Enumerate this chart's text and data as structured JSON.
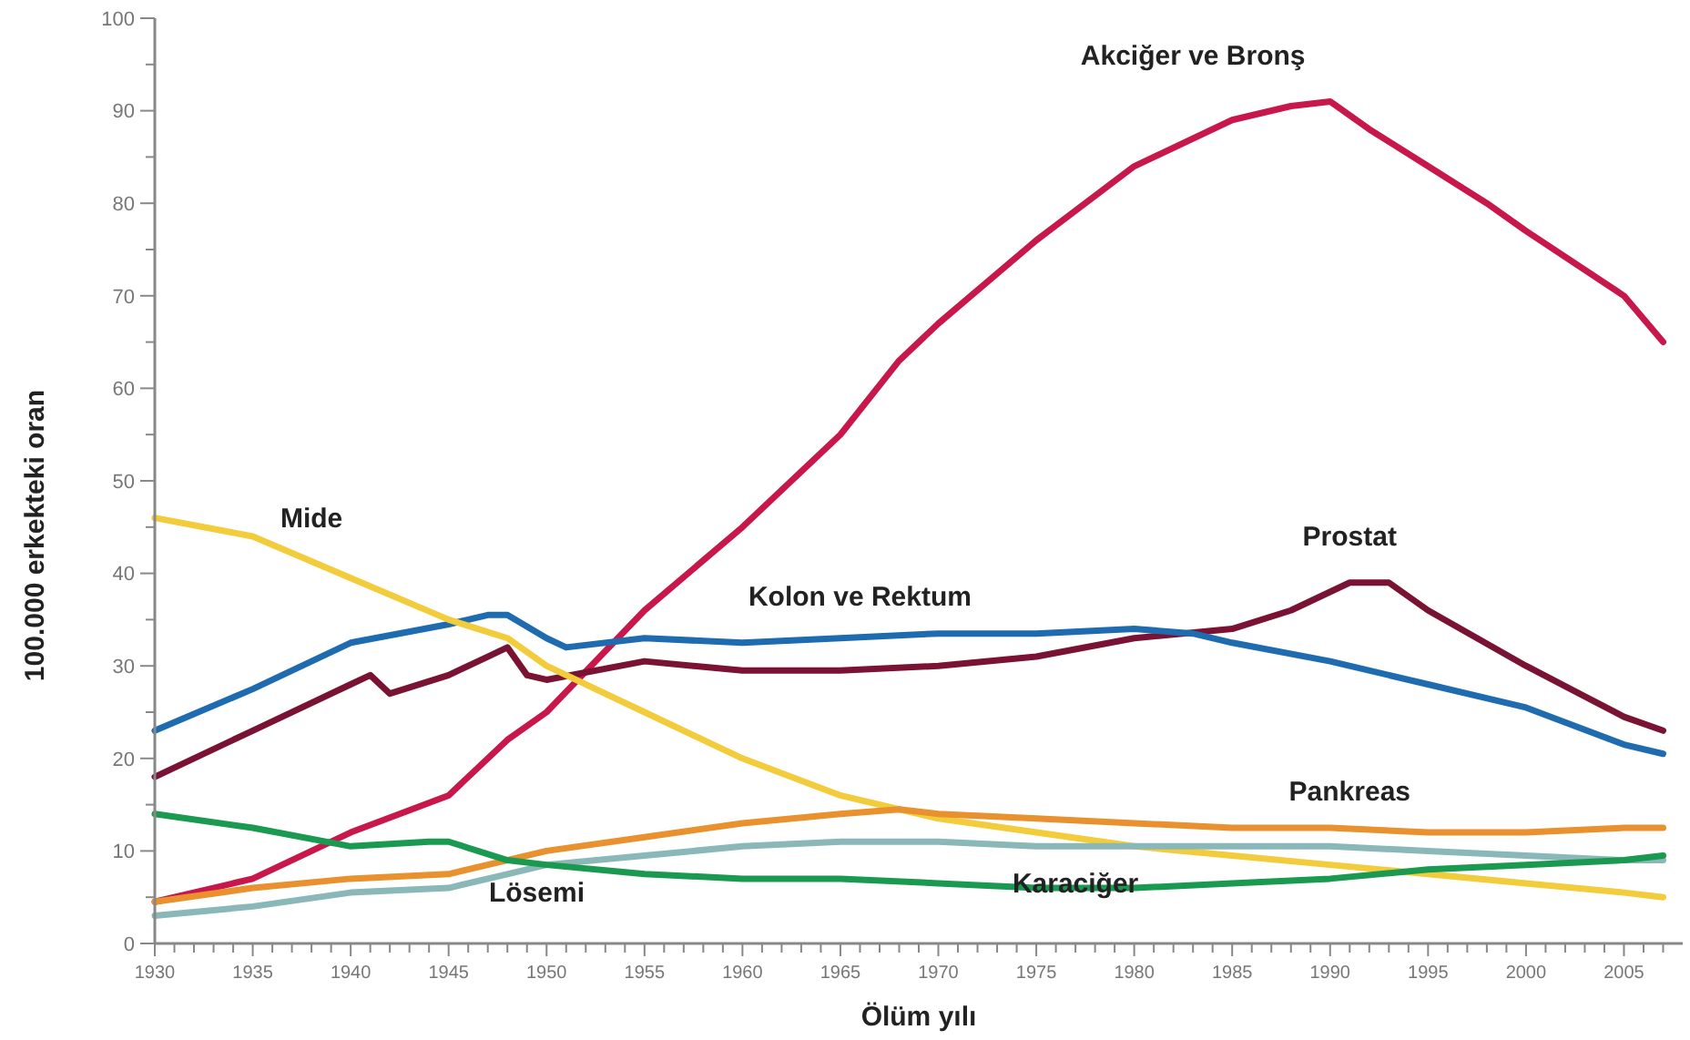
{
  "chart_data": {
    "type": "line",
    "xlabel": "Ölüm yılı",
    "ylabel": "100.000 erkekteki oran",
    "xlim": [
      1930,
      2008
    ],
    "ylim": [
      0,
      100
    ],
    "xticks": [
      1930,
      {
        "value": 1931,
        "label": null
      },
      {
        "value": 1932,
        "label": null
      },
      {
        "value": 1933,
        "label": null
      },
      {
        "value": 1934,
        "label": null
      },
      1935,
      {
        "value": 1936,
        "label": null
      },
      {
        "value": 1937,
        "label": null
      },
      {
        "value": 1938,
        "label": null
      },
      {
        "value": 1939,
        "label": null
      },
      1940,
      {
        "value": 1941,
        "label": null
      },
      {
        "value": 1942,
        "label": null
      },
      {
        "value": 1943,
        "label": null
      },
      {
        "value": 1944,
        "label": null
      },
      1945,
      {
        "value": 1946,
        "label": null
      },
      {
        "value": 1947,
        "label": null
      },
      {
        "value": 1948,
        "label": null
      },
      {
        "value": 1949,
        "label": null
      },
      1950,
      {
        "value": 1951,
        "label": null
      },
      {
        "value": 1952,
        "label": null
      },
      {
        "value": 1953,
        "label": null
      },
      {
        "value": 1954,
        "label": null
      },
      1955,
      {
        "value": 1956,
        "label": null
      },
      {
        "value": 1957,
        "label": null
      },
      {
        "value": 1958,
        "label": null
      },
      {
        "value": 1959,
        "label": null
      },
      1960,
      {
        "value": 1961,
        "label": null
      },
      {
        "value": 1962,
        "label": null
      },
      {
        "value": 1963,
        "label": null
      },
      {
        "value": 1964,
        "label": null
      },
      1965,
      {
        "value": 1966,
        "label": null
      },
      {
        "value": 1967,
        "label": null
      },
      {
        "value": 1968,
        "label": null
      },
      {
        "value": 1969,
        "label": null
      },
      1970,
      {
        "value": 1971,
        "label": null
      },
      {
        "value": 1972,
        "label": null
      },
      {
        "value": 1973,
        "label": null
      },
      {
        "value": 1974,
        "label": null
      },
      1975,
      {
        "value": 1976,
        "label": null
      },
      {
        "value": 1977,
        "label": null
      },
      {
        "value": 1978,
        "label": null
      },
      {
        "value": 1979,
        "label": null
      },
      1980,
      {
        "value": 1981,
        "label": null
      },
      {
        "value": 1982,
        "label": null
      },
      {
        "value": 1983,
        "label": null
      },
      {
        "value": 1984,
        "label": null
      },
      1985,
      {
        "value": 1986,
        "label": null
      },
      {
        "value": 1987,
        "label": null
      },
      {
        "value": 1988,
        "label": null
      },
      {
        "value": 1989,
        "label": null
      },
      1990,
      {
        "value": 1991,
        "label": null
      },
      {
        "value": 1992,
        "label": null
      },
      {
        "value": 1993,
        "label": null
      },
      {
        "value": 1994,
        "label": null
      },
      1995,
      {
        "value": 1996,
        "label": null
      },
      {
        "value": 1997,
        "label": null
      },
      {
        "value": 1998,
        "label": null
      },
      {
        "value": 1999,
        "label": null
      },
      2000,
      {
        "value": 2001,
        "label": null
      },
      {
        "value": 2002,
        "label": null
      },
      {
        "value": 2003,
        "label": null
      },
      {
        "value": 2004,
        "label": null
      },
      2005,
      {
        "value": 2006,
        "label": null
      },
      {
        "value": 2007,
        "label": null
      }
    ],
    "yticks": [
      0,
      {
        "value": 5,
        "label": null
      },
      10,
      {
        "value": 15,
        "label": null
      },
      20,
      {
        "value": 25,
        "label": null
      },
      30,
      {
        "value": 35,
        "label": null
      },
      40,
      {
        "value": 45,
        "label": null
      },
      50,
      {
        "value": 55,
        "label": null
      },
      60,
      {
        "value": 65,
        "label": null
      },
      70,
      {
        "value": 75,
        "label": null
      },
      80,
      {
        "value": 85,
        "label": null
      },
      90,
      {
        "value": 95,
        "label": null
      },
      100
    ],
    "grid": false,
    "legend": false,
    "marker": "none",
    "line_style": "solid",
    "series": [
      {
        "name": "Akciğer ve Bronş",
        "color": "#c8174a",
        "x": [
          1930,
          1935,
          1940,
          1945,
          1948,
          1950,
          1955,
          1960,
          1965,
          1968,
          1970,
          1975,
          1980,
          1985,
          1988,
          1990,
          1992,
          1995,
          1998,
          2000,
          2005,
          2007
        ],
        "values": [
          4.5,
          7,
          12,
          16,
          22,
          25,
          36,
          45,
          55,
          63,
          67,
          76,
          84,
          89,
          90.5,
          91,
          88,
          84,
          80,
          77,
          70,
          65
        ]
      },
      {
        "name": "Prostat",
        "color": "#7a1233",
        "x": [
          1930,
          1935,
          1940,
          1941,
          1942,
          1945,
          1947,
          1948,
          1949,
          1950,
          1955,
          1960,
          1965,
          1970,
          1975,
          1980,
          1985,
          1988,
          1991,
          1993,
          1995,
          2000,
          2005,
          2007
        ],
        "values": [
          18,
          23,
          28,
          29,
          27,
          29,
          31,
          32,
          29,
          28.5,
          30.5,
          29.5,
          29.5,
          30,
          31,
          33,
          34,
          36,
          39,
          39,
          36,
          30,
          24.5,
          23
        ]
      },
      {
        "name": "Kolon ve Rektum",
        "color": "#1f6bb0",
        "x": [
          1930,
          1935,
          1940,
          1945,
          1947,
          1948,
          1950,
          1951,
          1955,
          1960,
          1965,
          1970,
          1975,
          1980,
          1983,
          1985,
          1990,
          1995,
          2000,
          2005,
          2007
        ],
        "values": [
          23,
          27.5,
          32.5,
          34.5,
          35.5,
          35.5,
          33,
          32,
          33,
          32.5,
          33,
          33.5,
          33.5,
          34,
          33.5,
          32.5,
          30.5,
          28,
          25.5,
          21.5,
          20.5
        ]
      },
      {
        "name": "Mide",
        "color": "#f2cc3a",
        "x": [
          1930,
          1935,
          1940,
          1945,
          1948,
          1950,
          1955,
          1960,
          1965,
          1970,
          1975,
          1980,
          1985,
          1990,
          1995,
          2000,
          2005,
          2007
        ],
        "values": [
          46,
          44,
          39.5,
          35,
          33,
          30,
          25,
          20,
          16,
          13.5,
          12,
          10.5,
          9.5,
          8.5,
          7.5,
          6.5,
          5.5,
          5
        ]
      },
      {
        "name": "Pankreas",
        "color": "#e8912e",
        "x": [
          1930,
          1935,
          1940,
          1945,
          1950,
          1955,
          1960,
          1965,
          1968,
          1970,
          1975,
          1980,
          1985,
          1990,
          1995,
          2000,
          2005,
          2007
        ],
        "values": [
          4.5,
          6,
          7,
          7.5,
          10,
          11.5,
          13,
          14,
          14.5,
          14,
          13.5,
          13,
          12.5,
          12.5,
          12,
          12,
          12.5,
          12.5
        ]
      },
      {
        "name": "Lösemi",
        "color": "#8ab8b8",
        "x": [
          1930,
          1935,
          1940,
          1945,
          1948,
          1950,
          1955,
          1960,
          1965,
          1970,
          1975,
          1980,
          1985,
          1990,
          1995,
          2000,
          2005,
          2007
        ],
        "values": [
          3,
          4,
          5.5,
          6,
          7.5,
          8.5,
          9.5,
          10.5,
          11,
          11,
          10.5,
          10.5,
          10.5,
          10.5,
          10,
          9.5,
          9,
          9
        ]
      },
      {
        "name": "Karaciğer",
        "color": "#1a9a50",
        "x": [
          1930,
          1935,
          1940,
          1944,
          1945,
          1948,
          1950,
          1955,
          1960,
          1965,
          1970,
          1975,
          1980,
          1985,
          1990,
          1995,
          2000,
          2005,
          2007
        ],
        "values": [
          14,
          12.5,
          10.5,
          11,
          11,
          9,
          8.5,
          7.5,
          7,
          7,
          6.5,
          6,
          6,
          6.5,
          7,
          8,
          8.5,
          9,
          9.5
        ]
      }
    ]
  }
}
